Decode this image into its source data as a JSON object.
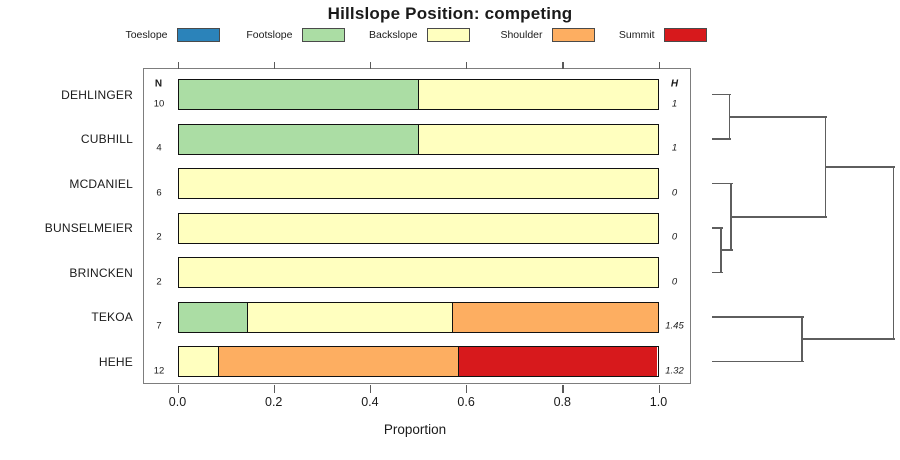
{
  "title": "Hillslope Position: competing",
  "legend": {
    "items": [
      {
        "label": "Toeslope",
        "category": "Toeslope"
      },
      {
        "label": "Footslope",
        "category": "Footslope"
      },
      {
        "label": "Backslope",
        "category": "Backslope"
      },
      {
        "label": "Shoulder",
        "category": "Shoulder"
      },
      {
        "label": "Summit",
        "category": "Summit"
      }
    ]
  },
  "columns": {
    "n_header": "N",
    "h_header": "H"
  },
  "x_axis": {
    "label": "Proportion",
    "tick_labels": [
      "0.0",
      "0.2",
      "0.4",
      "0.6",
      "0.8",
      "1.0"
    ]
  },
  "chart_data": {
    "type": "bar",
    "subtype": "horizontal-stacked-proportion",
    "title": "Hillslope Position: competing",
    "xlabel": "Proportion",
    "xlim": [
      0.0,
      1.0
    ],
    "x_ticks": [
      0.0,
      0.2,
      0.4,
      0.6,
      0.8,
      1.0
    ],
    "grid": false,
    "legend_position": "top",
    "categories": [
      "Toeslope",
      "Footslope",
      "Backslope",
      "Shoulder",
      "Summit"
    ],
    "palette": {
      "Toeslope": "#2B83BA",
      "Footslope": "#ABDDA4",
      "Backslope": "#FFFFBF",
      "Shoulder": "#FDAE61",
      "Summit": "#D7191C"
    },
    "rows": [
      {
        "label": "DEHLINGER",
        "n": "10",
        "h": "1",
        "segments": [
          {
            "category": "Footslope",
            "value": 0.5
          },
          {
            "category": "Backslope",
            "value": 0.5
          }
        ]
      },
      {
        "label": "CUBHILL",
        "n": "4",
        "h": "1",
        "segments": [
          {
            "category": "Footslope",
            "value": 0.5
          },
          {
            "category": "Backslope",
            "value": 0.5
          }
        ]
      },
      {
        "label": "MCDANIEL",
        "n": "6",
        "h": "0",
        "segments": [
          {
            "category": "Backslope",
            "value": 1.0
          }
        ]
      },
      {
        "label": "BUNSELMEIER",
        "n": "2",
        "h": "0",
        "segments": [
          {
            "category": "Backslope",
            "value": 1.0
          }
        ]
      },
      {
        "label": "BRINCKEN",
        "n": "2",
        "h": "0",
        "segments": [
          {
            "category": "Backslope",
            "value": 1.0
          }
        ]
      },
      {
        "label": "TEKOA",
        "n": "7",
        "h": "1.45",
        "segments": [
          {
            "category": "Footslope",
            "value": 0.1429
          },
          {
            "category": "Backslope",
            "value": 0.4286
          },
          {
            "category": "Shoulder",
            "value": 0.4286
          }
        ]
      },
      {
        "label": "HEHE",
        "n": "12",
        "h": "1.32",
        "segments": [
          {
            "category": "Backslope",
            "value": 0.0833
          },
          {
            "category": "Shoulder",
            "value": 0.5
          },
          {
            "category": "Summit",
            "value": 0.4167
          }
        ]
      }
    ],
    "dendrogram": {
      "orientation": "right",
      "height_scale": "relative-0-to-1",
      "leaf_order": [
        "DEHLINGER",
        "CUBHILL",
        "MCDANIEL",
        "BUNSELMEIER",
        "BRINCKEN",
        "TEKOA",
        "HEHE"
      ],
      "tree": {
        "h": 1.0,
        "children": [
          {
            "h": 0.627,
            "children": [
              {
                "h": 0.0965,
                "children": [
                  {
                    "leaf": 0
                  },
                  {
                    "leaf": 1
                  }
                ]
              },
              {
                "h": 0.1048,
                "children": [
                  {
                    "leaf": 2
                  },
                  {
                    "h": 0.0496,
                    "children": [
                      {
                        "leaf": 3
                      },
                      {
                        "leaf": 4
                      }
                    ]
                  }
                ]
              }
            ]
          },
          {
            "h": 0.4964,
            "children": [
              {
                "leaf": 5
              },
              {
                "leaf": 6
              }
            ]
          }
        ]
      }
    }
  }
}
